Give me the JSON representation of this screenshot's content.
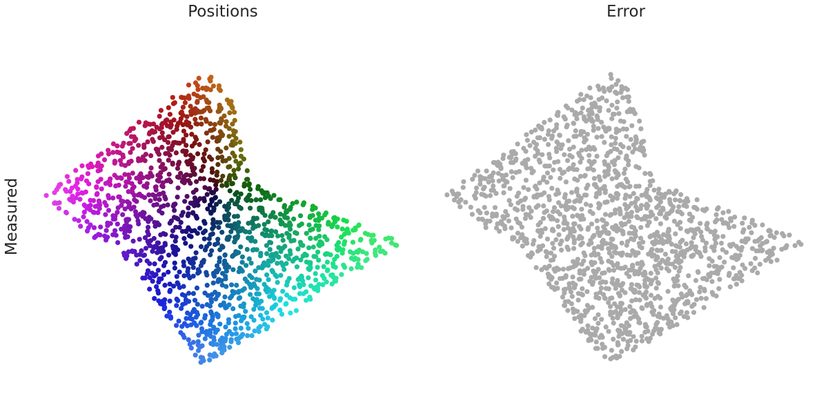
{
  "chart_data": [
    {
      "type": "scatter",
      "title": "Positions",
      "ylabel": "Measured",
      "xlabel": "",
      "axes_visible": false,
      "grid": false,
      "legend": "none",
      "color_mode": "position_hue",
      "outline": [
        [
          -4.0,
          -0.15
        ],
        [
          -0.3,
          2.65
        ],
        [
          0.25,
          2.2
        ],
        [
          0.7,
          0.15
        ],
        [
          4.2,
          -1.2
        ],
        [
          0.7,
          -3.45
        ],
        [
          -0.4,
          -4.0
        ],
        [
          -2.4,
          -1.2
        ],
        [
          -2.8,
          -1.15
        ]
      ],
      "n_points": 1500,
      "x_range": [
        -4.0,
        4.2
      ],
      "y_range": [
        -4.0,
        2.65
      ]
    },
    {
      "type": "scatter",
      "title": "Error",
      "xlabel": "",
      "ylabel": "",
      "axes_visible": false,
      "grid": false,
      "legend": "none",
      "color": "#aaaaaa",
      "outline": [
        [
          -4.0,
          -0.15
        ],
        [
          -0.3,
          2.65
        ],
        [
          0.25,
          2.2
        ],
        [
          0.7,
          0.15
        ],
        [
          4.2,
          -1.2
        ],
        [
          0.7,
          -3.45
        ],
        [
          -0.4,
          -4.0
        ],
        [
          -2.4,
          -1.2
        ],
        [
          -2.8,
          -1.15
        ]
      ],
      "n_points": 1500,
      "x_range": [
        -4.0,
        4.2
      ],
      "y_range": [
        -4.0,
        2.65
      ]
    }
  ]
}
